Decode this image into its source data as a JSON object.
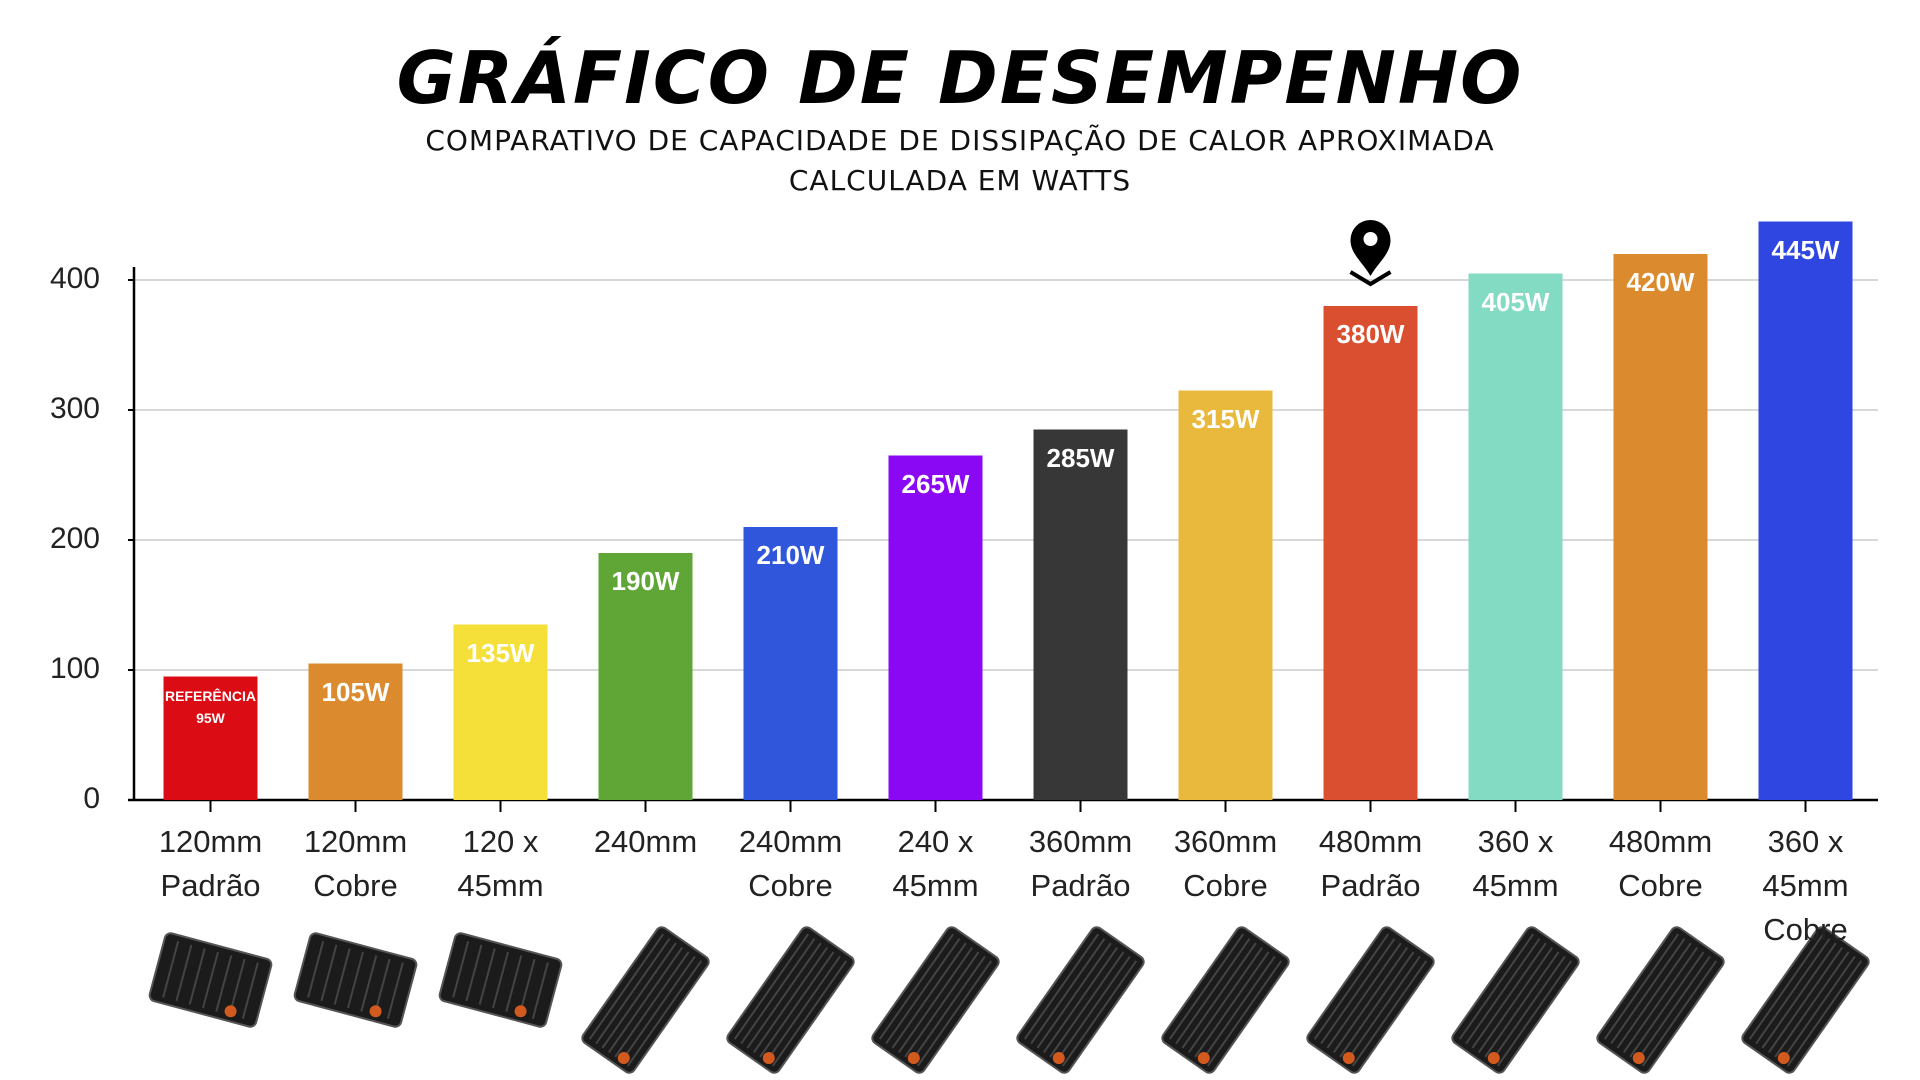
{
  "chart_data": {
    "type": "bar",
    "title": "GRÁFICO DE DESEMPENHO",
    "subtitle": [
      "COMPARATIVO DE CAPACIDADE DE DISSIPAÇÃO DE CALOR APROXIMADA",
      "CALCULADA EM WATTS"
    ],
    "categories": [
      "120mm Padrão",
      "120mm Cobre",
      "120 x 45mm",
      "240mm",
      "240mm Cobre",
      "240 x 45mm",
      "360mm Padrão",
      "360mm Cobre",
      "480mm Padrão",
      "360 x 45mm",
      "480mm Cobre",
      "360 x 45mm Cobre"
    ],
    "values": [
      95,
      105,
      135,
      190,
      210,
      265,
      285,
      315,
      380,
      405,
      420,
      445
    ],
    "value_labels": [
      "REFERÊNCIA 95W",
      "105W",
      "135W",
      "190W",
      "210W",
      "265W",
      "285W",
      "315W",
      "380W",
      "405W",
      "420W",
      "445W"
    ],
    "colors": [
      "#dc0c14",
      "#dc8a2e",
      "#f5e03a",
      "#5fa637",
      "#2f56db",
      "#8b08f4",
      "#373737",
      "#e8b93c",
      "#d94f30",
      "#83dbc3",
      "#dc8a2e",
      "#2f46e0"
    ],
    "ylim": [
      0,
      410
    ],
    "yticks": [
      0,
      100,
      200,
      300,
      400
    ],
    "grid": true
  }
}
